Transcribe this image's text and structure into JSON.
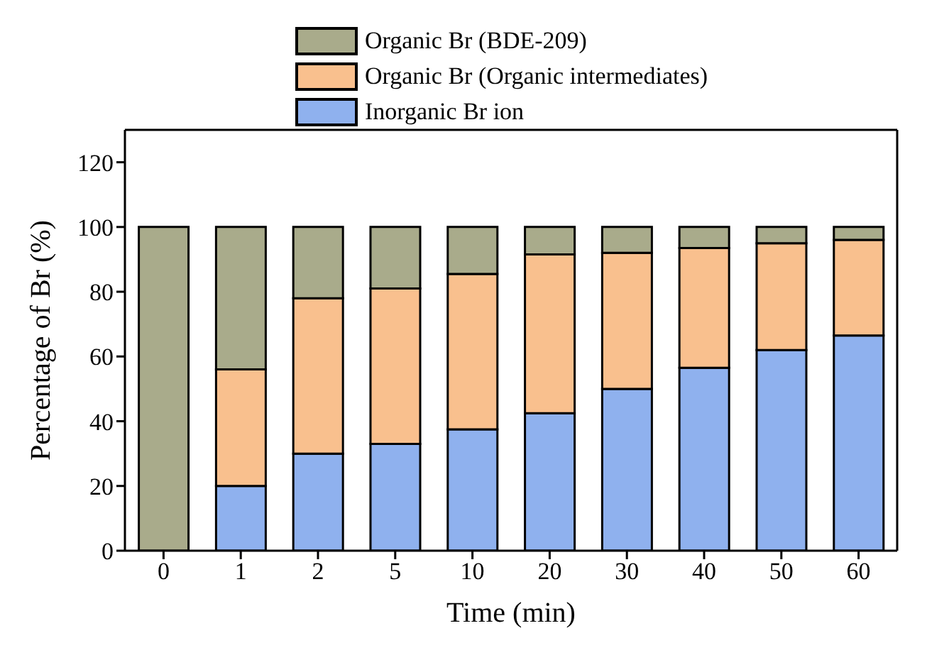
{
  "chart_data": {
    "type": "bar",
    "stacked": true,
    "xlabel": "Time (min)",
    "ylabel": "Percentage of Br (%)",
    "categories": [
      "0",
      "1",
      "2",
      "5",
      "10",
      "20",
      "30",
      "40",
      "50",
      "60"
    ],
    "series": [
      {
        "name": "Inorganic Br ion",
        "color": "#8fb1ee",
        "values": [
          0,
          20,
          30,
          33,
          37.5,
          42.5,
          50,
          56.5,
          62,
          66.5
        ]
      },
      {
        "name": "Organic Br (Organic intermediates)",
        "color": "#f9c08e",
        "values": [
          0,
          36,
          48,
          48,
          48,
          49,
          42,
          37,
          33,
          29.5
        ]
      },
      {
        "name": "Organic Br (BDE-209)",
        "color": "#a9ab8b",
        "values": [
          100,
          44,
          22,
          19,
          14.5,
          8.5,
          8,
          6.5,
          5,
          4
        ]
      }
    ],
    "ylim": [
      0,
      130
    ],
    "yticks": [
      0,
      20,
      40,
      60,
      80,
      100,
      120
    ],
    "grid": false,
    "legend": "top"
  }
}
